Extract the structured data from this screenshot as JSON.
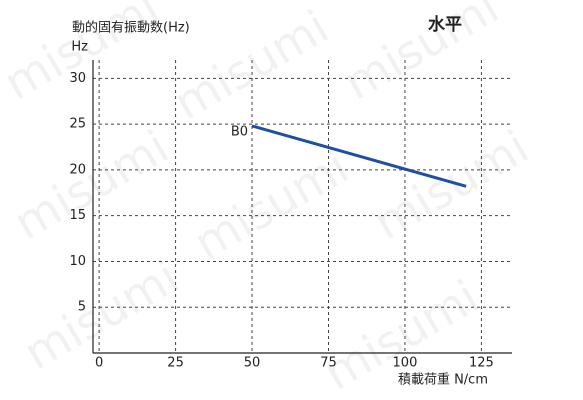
{
  "chart_data": {
    "type": "line",
    "title": "動的固有振動数(Hz)",
    "subtitle": "水平",
    "y_label": "Hz",
    "x_label": "積載荷重 N/cm",
    "watermark": "misumi",
    "x": [
      50,
      120
    ],
    "series": [
      {
        "name": "B0",
        "color": "#1f4fa0",
        "values": [
          24.8,
          18.2
        ]
      }
    ],
    "xlim": [
      -2,
      135
    ],
    "xticks": [
      0,
      25,
      50,
      75,
      100,
      125
    ],
    "ylim": [
      0,
      32
    ],
    "yticks": [
      5,
      10,
      15,
      20,
      25,
      30
    ],
    "grid": true
  }
}
